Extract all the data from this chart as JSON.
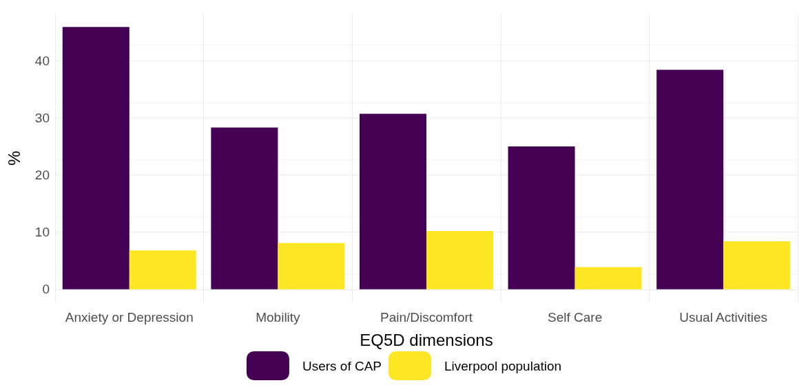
{
  "chart_data": {
    "type": "bar",
    "xlabel": "EQ5D dimensions",
    "ylabel": "%",
    "categories": [
      "Anxiety or Depression",
      "Mobility",
      "Pain/Discomfort",
      "Self Care",
      "Usual Activities"
    ],
    "series": [
      {
        "name": "Users of CAP",
        "color": "#440154",
        "values": [
          45.9,
          28.3,
          30.7,
          25.0,
          38.4
        ]
      },
      {
        "name": "Liverpool population",
        "color": "#fde725",
        "values": [
          6.8,
          8.1,
          10.2,
          3.9,
          8.4
        ]
      }
    ],
    "ylim": [
      -2.3,
      48.2
    ],
    "yticks": [
      0,
      10,
      20,
      30,
      40
    ],
    "grid": true,
    "legend": "bottom"
  }
}
